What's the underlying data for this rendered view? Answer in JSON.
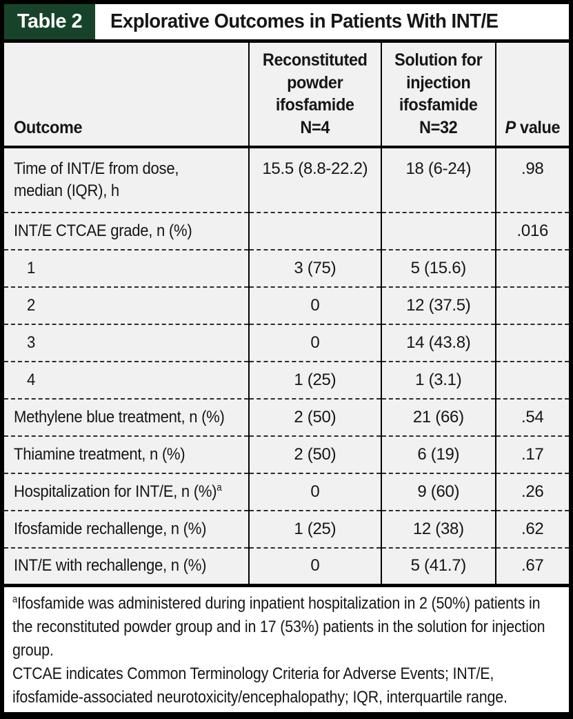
{
  "title_bar": {
    "tag": "Table 2",
    "title": "Explorative Outcomes in Patients With INT/E"
  },
  "colors": {
    "tag_bg": "#17432a",
    "cell_bg": "#f1f1f1",
    "border": "#000000",
    "dash": "#2b2b2b",
    "tag_text": "#ffffff"
  },
  "table": {
    "headers": {
      "outcome": "Outcome",
      "powder": "Reconstituted\npowder\nifosfamide\nN=4",
      "solution": "Solution for\ninjection\nifosfamide\nN=32",
      "p_italic": "P",
      "p_rest": " value"
    },
    "rows": [
      {
        "label": "Time of INT/E from dose,\nmedian (IQR), h",
        "sup": "",
        "indent": false,
        "two_line": true,
        "powder": "15.5 (8.8-22.2)",
        "solution": "18 (6-24)",
        "p_value": ".98"
      },
      {
        "label": "INT/E CTCAE grade, n (%)",
        "sup": "",
        "indent": false,
        "two_line": false,
        "powder": "",
        "solution": "",
        "p_value": ".016"
      },
      {
        "label": "1",
        "sup": "",
        "indent": true,
        "two_line": false,
        "powder": "3 (75)",
        "solution": "5 (15.6)",
        "p_value": ""
      },
      {
        "label": "2",
        "sup": "",
        "indent": true,
        "two_line": false,
        "powder": "0",
        "solution": "12 (37.5)",
        "p_value": ""
      },
      {
        "label": "3",
        "sup": "",
        "indent": true,
        "two_line": false,
        "powder": "0",
        "solution": "14 (43.8)",
        "p_value": ""
      },
      {
        "label": "4",
        "sup": "",
        "indent": true,
        "two_line": false,
        "powder": "1 (25)",
        "solution": "1 (3.1)",
        "p_value": ""
      },
      {
        "label": "Methylene blue treatment, n (%)",
        "sup": "",
        "indent": false,
        "two_line": false,
        "powder": "2 (50)",
        "solution": "21 (66)",
        "p_value": ".54"
      },
      {
        "label": "Thiamine treatment, n (%)",
        "sup": "",
        "indent": false,
        "two_line": false,
        "powder": "2 (50)",
        "solution": "6 (19)",
        "p_value": ".17"
      },
      {
        "label": "Hospitalization for INT/E, n (%)",
        "sup": "a",
        "indent": false,
        "two_line": false,
        "powder": "0",
        "solution": "9 (60)",
        "p_value": ".26"
      },
      {
        "label": "Ifosfamide rechallenge, n (%)",
        "sup": "",
        "indent": false,
        "two_line": false,
        "powder": "1 (25)",
        "solution": "12 (38)",
        "p_value": ".62"
      },
      {
        "label": "INT/E with rechallenge, n (%)",
        "sup": "",
        "indent": false,
        "two_line": false,
        "powder": "0",
        "solution": "5 (41.7)",
        "p_value": ".67"
      }
    ]
  },
  "footnotes": [
    {
      "sup": "a",
      "text": "Ifosfamide was administered during inpatient hospitalization in 2 (50%) patients in the reconstituted powder group and in 17 (53%) patients in the solution for injection group."
    },
    {
      "sup": "",
      "text": "CTCAE indicates Common Terminology Criteria for Adverse Events; INT/E, ifosfamide-associated neurotoxicity/encephalopathy; IQR, interquartile range."
    }
  ],
  "chart_data": {
    "type": "table",
    "title": "Table 2. Explorative Outcomes in Patients With INT/E",
    "columns": [
      "Outcome",
      "Reconstituted powder ifosfamide N=4",
      "Solution for injection ifosfamide N=32",
      "P value"
    ],
    "rows": [
      [
        "Time of INT/E from dose, median (IQR), h",
        "15.5 (8.8-22.2)",
        "18 (6-24)",
        ".98"
      ],
      [
        "INT/E CTCAE grade, n (%)",
        "",
        "",
        ".016"
      ],
      [
        "1",
        "3 (75)",
        "5 (15.6)",
        ""
      ],
      [
        "2",
        "0",
        "12 (37.5)",
        ""
      ],
      [
        "3",
        "0",
        "14 (43.8)",
        ""
      ],
      [
        "4",
        "1 (25)",
        "1 (3.1)",
        ""
      ],
      [
        "Methylene blue treatment, n (%)",
        "2 (50)",
        "21 (66)",
        ".54"
      ],
      [
        "Thiamine treatment, n (%)",
        "2 (50)",
        "6 (19)",
        ".17"
      ],
      [
        "Hospitalization for INT/E, n (%)a",
        "0",
        "9 (60)",
        ".26"
      ],
      [
        "Ifosfamide rechallenge, n (%)",
        "1 (25)",
        "12 (38)",
        ".62"
      ],
      [
        "INT/E with rechallenge, n (%)",
        "0",
        "5 (41.7)",
        ".67"
      ]
    ]
  }
}
